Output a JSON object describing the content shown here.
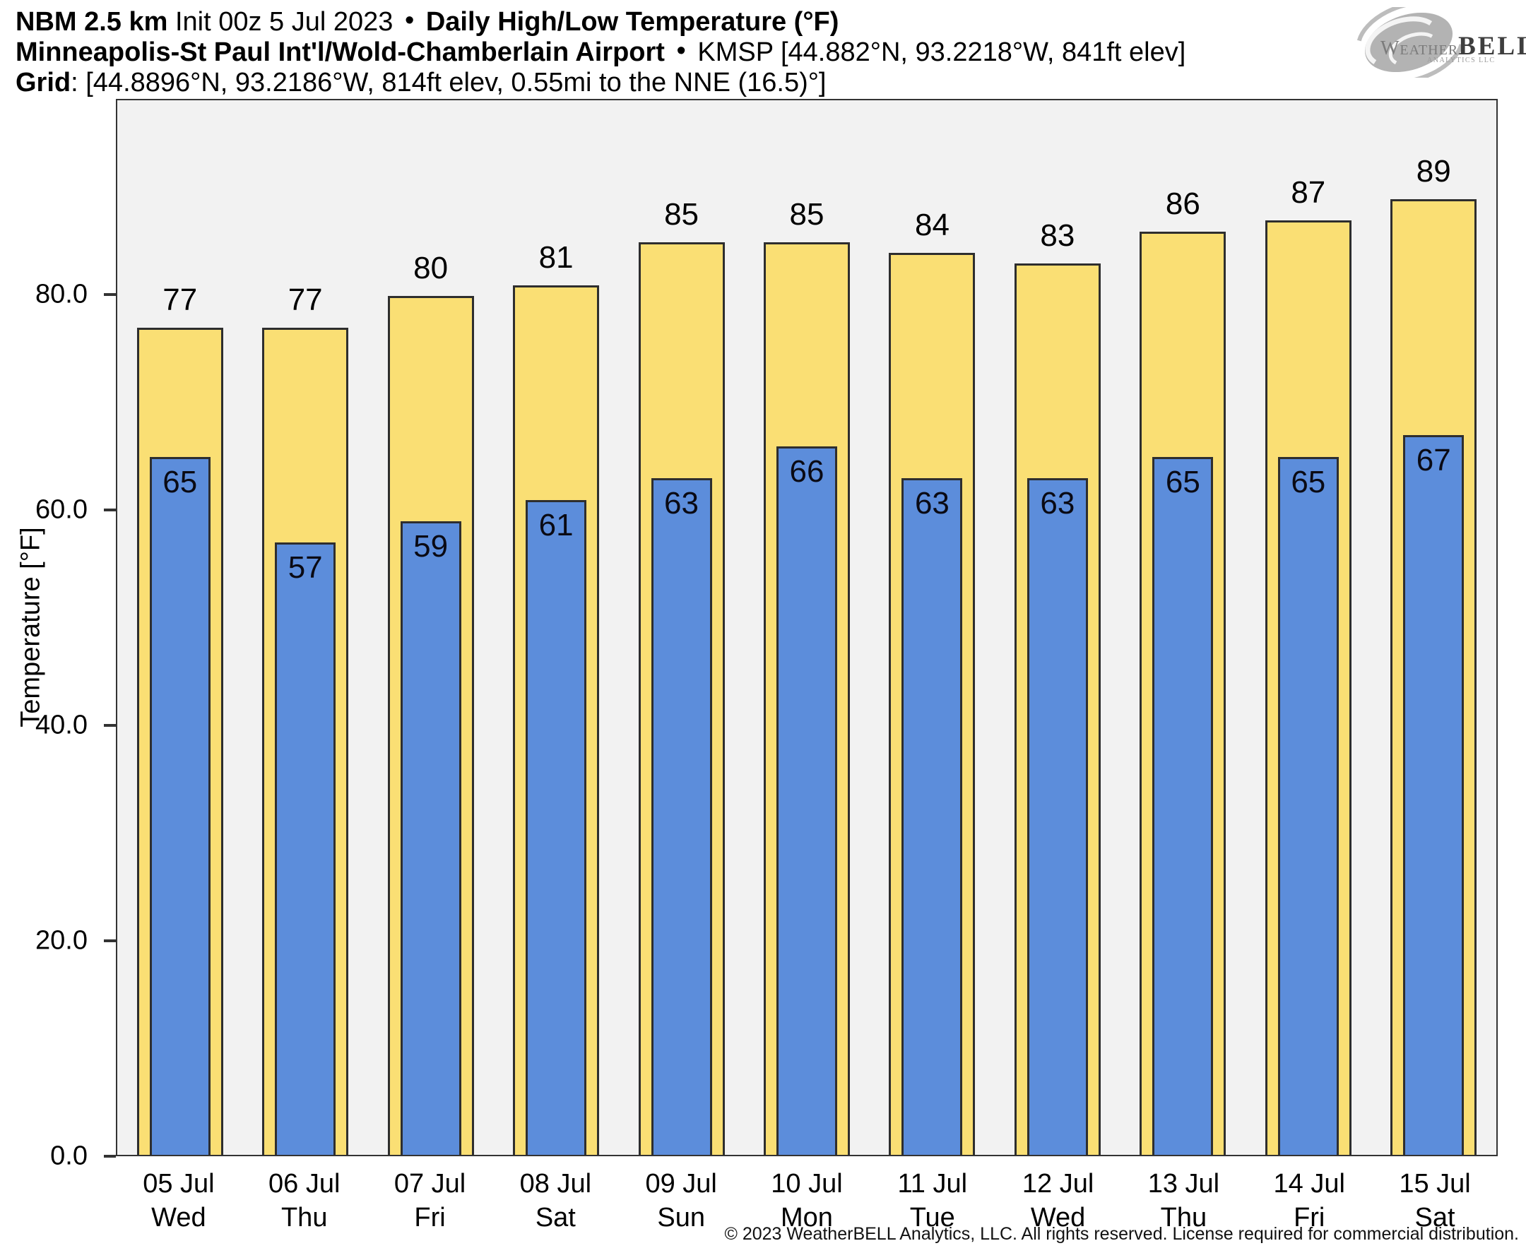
{
  "header": {
    "line1": {
      "model": "NBM 2.5 km",
      "init": "Init 00z 5 Jul 2023",
      "bullet": "•",
      "product": "Daily High/Low Temperature (°F)"
    },
    "line2": {
      "station": "Minneapolis-St Paul Int'l/Wold-Chamberlain Airport",
      "bullet": "•",
      "meta": "KMSP [44.882°N, 93.2218°W, 841ft elev]"
    },
    "line3": {
      "label": "Grid",
      "meta": ": [44.8896°N, 93.2186°W, 814ft elev, 0.55mi to the NNE (16.5)°]"
    }
  },
  "logo": {
    "brand_weather": "Weather",
    "brand_bell": "BELL",
    "subtitle": "Analytics LLC",
    "swirl_color": "#b3b3b3"
  },
  "chart_data": {
    "type": "bar",
    "title": "NBM 2.5 km Daily High/Low Temperature (°F) — KMSP Minneapolis-St Paul Int'l/Wold-Chamberlain Airport",
    "xlabel": "",
    "ylabel": "Temperature [°F]",
    "ylim": [
      0,
      98.2
    ],
    "grid": false,
    "legend_position": "none",
    "plot_background": "#f2f2f2",
    "bar_outline": "#2e2e2e",
    "yticks": {
      "values": [
        0,
        20,
        40,
        60,
        80
      ],
      "labels": [
        "0.0",
        "20.0",
        "40.0",
        "60.0",
        "80.0"
      ]
    },
    "categories": [
      {
        "date": "05 Jul",
        "weekday": "Wed"
      },
      {
        "date": "06 Jul",
        "weekday": "Thu"
      },
      {
        "date": "07 Jul",
        "weekday": "Fri"
      },
      {
        "date": "08 Jul",
        "weekday": "Sat"
      },
      {
        "date": "09 Jul",
        "weekday": "Sun"
      },
      {
        "date": "10 Jul",
        "weekday": "Mon"
      },
      {
        "date": "11 Jul",
        "weekday": "Tue"
      },
      {
        "date": "12 Jul",
        "weekday": "Wed"
      },
      {
        "date": "13 Jul",
        "weekday": "Thu"
      },
      {
        "date": "14 Jul",
        "weekday": "Fri"
      },
      {
        "date": "15 Jul",
        "weekday": "Sat"
      }
    ],
    "series": [
      {
        "name": "Daily High",
        "color": "#fadf74",
        "values": [
          77,
          77,
          80,
          81,
          85,
          85,
          84,
          83,
          86,
          87,
          89
        ]
      },
      {
        "name": "Daily Low",
        "color": "#5c8ddb",
        "values": [
          65,
          57,
          59,
          61,
          63,
          66,
          63,
          63,
          65,
          65,
          67
        ]
      }
    ]
  },
  "footer": {
    "copyright": "© 2023 WeatherBELL Analytics, LLC. All rights reserved. License required for commercial distribution."
  }
}
